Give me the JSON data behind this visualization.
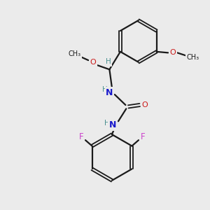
{
  "background_color": "#ebebeb",
  "bond_color": "#1a1a1a",
  "N_color": "#1a1acc",
  "O_color": "#cc1a1a",
  "F_color": "#cc44cc",
  "H_color": "#4a9090",
  "figsize": [
    3.0,
    3.0
  ],
  "dpi": 100,
  "xlim": [
    0,
    10
  ],
  "ylim": [
    0,
    10
  ]
}
